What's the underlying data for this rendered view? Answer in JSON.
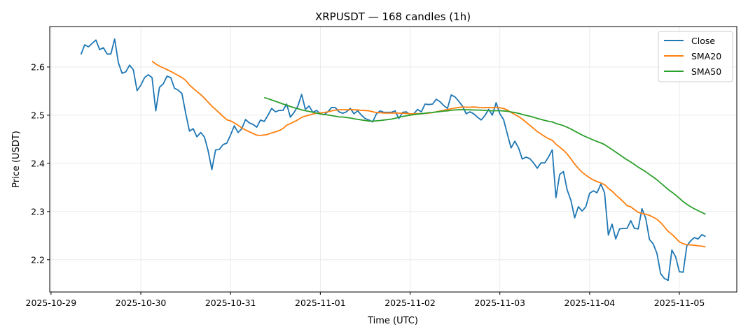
{
  "chart_data": {
    "type": "line",
    "title": "XRPUSDT — 168 candles (1h)",
    "xlabel": "Time (UTC)",
    "ylabel": "Price (USDT)",
    "start": "2025-10-29 08:00",
    "interval_hours": 1,
    "x_ticks": [
      "2025-10-29",
      "2025-10-30",
      "2025-10-31",
      "2025-11-01",
      "2025-11-02",
      "2025-11-03",
      "2025-11-04",
      "2025-11-05"
    ],
    "y_ticks": [
      2.2,
      2.3,
      2.4,
      2.5,
      2.6
    ],
    "ylim": [
      2.133,
      2.684
    ],
    "xlim_hours_from_first_tick": [
      -0.35,
      183.35
    ],
    "grid": true,
    "legend_position": "top-right",
    "colors": {
      "Close": "#1f77b4",
      "SMA20": "#ff7f0e",
      "SMA50": "#2ca02c"
    },
    "series": [
      {
        "name": "Close",
        "values": [
          2.626,
          2.646,
          2.642,
          2.649,
          2.656,
          2.636,
          2.64,
          2.627,
          2.627,
          2.658,
          2.609,
          2.587,
          2.59,
          2.604,
          2.594,
          2.551,
          2.562,
          2.578,
          2.584,
          2.578,
          2.509,
          2.558,
          2.565,
          2.581,
          2.578,
          2.556,
          2.552,
          2.545,
          2.504,
          2.467,
          2.472,
          2.455,
          2.464,
          2.455,
          2.426,
          2.387,
          2.428,
          2.429,
          2.439,
          2.442,
          2.459,
          2.478,
          2.464,
          2.472,
          2.491,
          2.484,
          2.481,
          2.475,
          2.49,
          2.487,
          2.5,
          2.514,
          2.507,
          2.51,
          2.51,
          2.523,
          2.496,
          2.506,
          2.519,
          2.543,
          2.512,
          2.519,
          2.506,
          2.51,
          2.503,
          2.501,
          2.507,
          2.516,
          2.516,
          2.507,
          2.504,
          2.507,
          2.514,
          2.503,
          2.509,
          2.5,
          2.493,
          2.49,
          2.486,
          2.503,
          2.509,
          2.506,
          2.506,
          2.506,
          2.509,
          2.493,
          2.506,
          2.507,
          2.501,
          2.503,
          2.512,
          2.507,
          2.523,
          2.522,
          2.523,
          2.533,
          2.528,
          2.52,
          2.514,
          2.542,
          2.538,
          2.529,
          2.519,
          2.503,
          2.507,
          2.503,
          2.496,
          2.49,
          2.499,
          2.512,
          2.5,
          2.526,
          2.503,
          2.491,
          2.461,
          2.432,
          2.446,
          2.432,
          2.409,
          2.413,
          2.41,
          2.401,
          2.39,
          2.401,
          2.401,
          2.413,
          2.428,
          2.329,
          2.377,
          2.383,
          2.345,
          2.323,
          2.287,
          2.31,
          2.301,
          2.31,
          2.338,
          2.343,
          2.339,
          2.357,
          2.339,
          2.251,
          2.274,
          2.243,
          2.264,
          2.265,
          2.265,
          2.281,
          2.265,
          2.264,
          2.306,
          2.286,
          2.242,
          2.233,
          2.213,
          2.171,
          2.161,
          2.157,
          2.22,
          2.206,
          2.175,
          2.174,
          2.229,
          2.239,
          2.246,
          2.243,
          2.252,
          2.248
        ]
      },
      {
        "name": "SMA20",
        "window": 20
      },
      {
        "name": "SMA50",
        "window": 50
      }
    ]
  }
}
